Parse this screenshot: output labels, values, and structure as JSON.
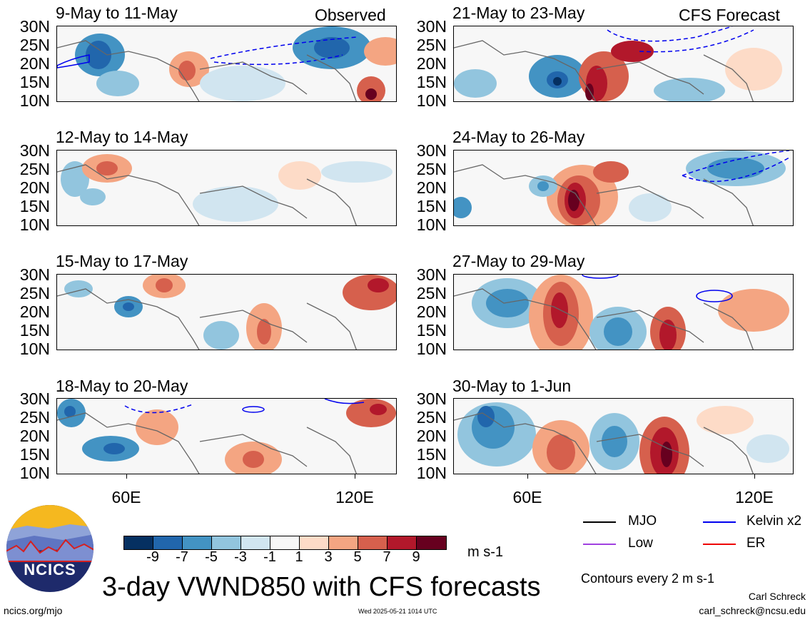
{
  "figure": {
    "title": "3-day VWND850 with CFS forecasts",
    "units": "m s-1",
    "contour_note": "Contours every 2 m s-1",
    "credit_name": "Carl Schreck",
    "credit_email": "carl_schreck@ncsu.edu",
    "website": "ncics.org/mjo",
    "timestamp": "Wed 2025-05-21 1014 UTC",
    "logo_text": "NCICS"
  },
  "columns": {
    "left_tag": "Observed",
    "right_tag": "CFS Forecast"
  },
  "lat_labels": [
    "30N",
    "25N",
    "20N",
    "15N",
    "10N"
  ],
  "lon_labels": [
    "60E",
    "120E"
  ],
  "panels": [
    {
      "title": "9-May to 11-May",
      "column": "observed"
    },
    {
      "title": "12-May to 14-May",
      "column": "observed"
    },
    {
      "title": "15-May to 17-May",
      "column": "observed"
    },
    {
      "title": "18-May to 20-May",
      "column": "observed"
    },
    {
      "title": "21-May to 23-May",
      "column": "forecast"
    },
    {
      "title": "24-May to 26-May",
      "column": "forecast"
    },
    {
      "title": "27-May to 29-May",
      "column": "forecast"
    },
    {
      "title": "30-May to 1-Jun",
      "column": "forecast"
    }
  ],
  "colorbar": {
    "labels": [
      "-9",
      "-7",
      "-5",
      "-3",
      "-1",
      "1",
      "3",
      "5",
      "7",
      "9"
    ],
    "colors": [
      "#053061",
      "#2166ac",
      "#4393c3",
      "#92c5de",
      "#d1e5f0",
      "#f7f7f7",
      "#fddbc7",
      "#f4a582",
      "#d6604d",
      "#b2182b",
      "#67001f"
    ]
  },
  "legend": [
    {
      "label": "MJO",
      "color": "#000000"
    },
    {
      "label": "Kelvin x2",
      "color": "#0000ee"
    },
    {
      "label": "Low",
      "color": "#a040e0"
    },
    {
      "label": "ER",
      "color": "#ee0000"
    }
  ]
}
